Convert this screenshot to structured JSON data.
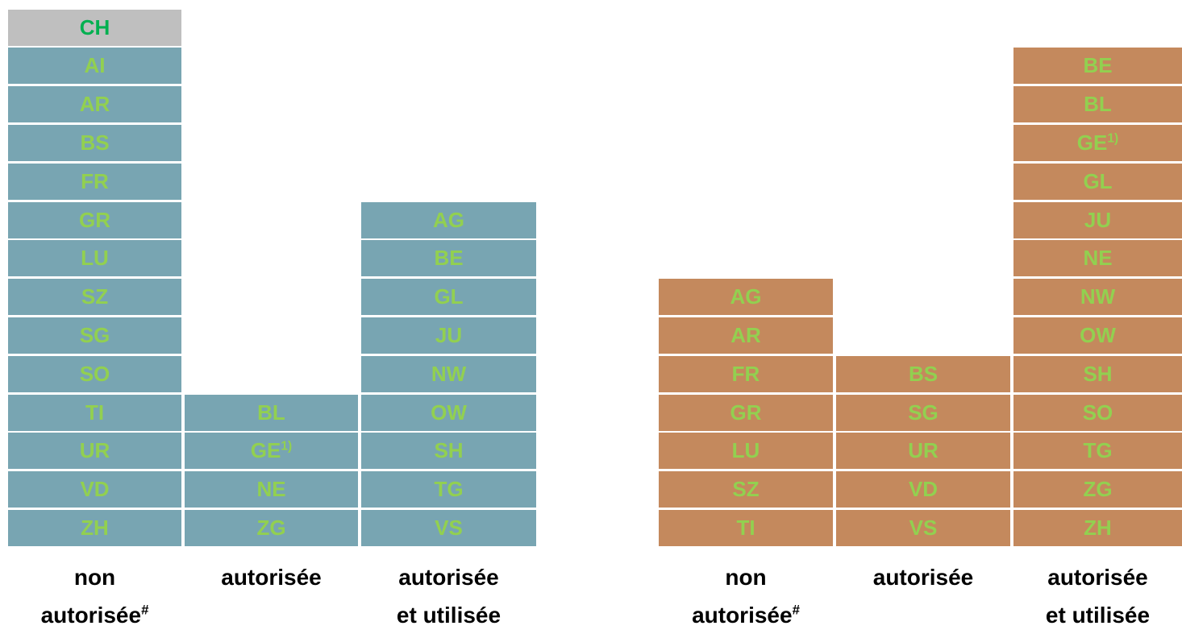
{
  "panels": [
    {
      "header": "CH",
      "columns": [
        {
          "cells": [
            "AI",
            "AR",
            "BS",
            "FR",
            "GR",
            "LU",
            "SZ",
            "SG",
            "SO",
            "TI",
            "UR",
            "VD",
            "ZH"
          ],
          "footer": {
            "lines": [
              "non",
              "autorisée"
            ],
            "sup": "#"
          }
        },
        {
          "cells": [
            "BL",
            {
              "label": "GE",
              "sup": "1)"
            },
            "NE",
            "ZG"
          ],
          "footer": {
            "lines": [
              "autorisée"
            ]
          }
        },
        {
          "cells": [
            "AG",
            "BE",
            "GL",
            "JU",
            "NW",
            "OW",
            "SH",
            "TG",
            "VS"
          ],
          "footer": {
            "lines": [
              "autorisée",
              "et utilisée"
            ]
          }
        }
      ]
    },
    {
      "columns": [
        {
          "cells": [
            "AG",
            "AR",
            "FR",
            "GR",
            "LU",
            "SZ",
            "TI"
          ],
          "footer": {
            "lines": [
              "non",
              "autorisée"
            ],
            "sup": "#"
          }
        },
        {
          "cells": [
            "BS",
            "SG",
            "UR",
            "VD",
            "VS"
          ],
          "footer": {
            "lines": [
              "autorisée"
            ]
          }
        },
        {
          "cells": [
            "BE",
            "BL",
            {
              "label": "GE",
              "sup": "1)"
            },
            "GL",
            "JU",
            "NE",
            "NW",
            "OW",
            "SH",
            "SO",
            "TG",
            "ZG",
            "ZH"
          ],
          "footer": {
            "lines": [
              "autorisée",
              "et utilisée"
            ]
          }
        }
      ]
    }
  ]
}
